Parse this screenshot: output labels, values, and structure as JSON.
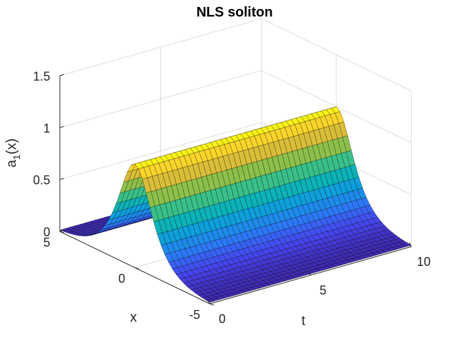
{
  "chart_data": {
    "type": "surface",
    "title": "NLS soliton",
    "xlabel": "t",
    "ylabel": "x",
    "zlabel_main": "a",
    "zlabel_sub": "1",
    "zlabel_tail": "(x)",
    "function": "sech",
    "amplitude": 1,
    "t_range": [
      0,
      10
    ],
    "x_range": [
      -5,
      5
    ],
    "z_range": [
      0,
      1.5
    ],
    "t_ticks": [
      "0",
      "5",
      "10"
    ],
    "x_ticks": [
      "-5",
      "0",
      "5"
    ],
    "z_ticks": [
      "0",
      "0.5",
      "1",
      "1.5"
    ],
    "t_samples": 41,
    "x_samples": 41,
    "colormap": "parula",
    "grid": true
  }
}
